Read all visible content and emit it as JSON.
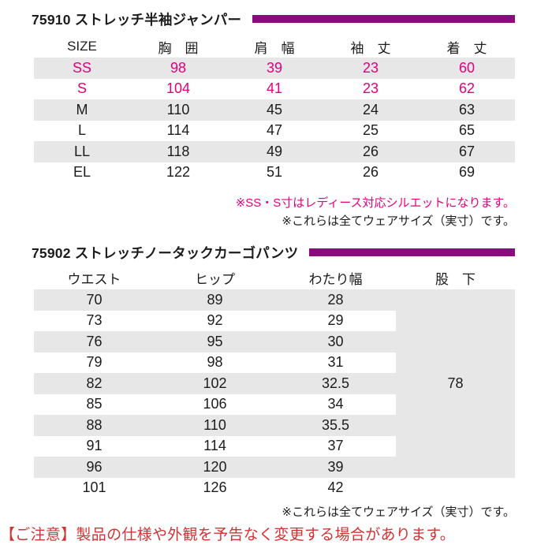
{
  "colors": {
    "accent_bar": "#8a0b7c",
    "pink": "#e4007f",
    "row_stripe": "#e7e7e7",
    "notice_red": "#d03333",
    "text": "#1c1c1c"
  },
  "section1": {
    "title": "75910 ストレッチ半袖ジャンパー",
    "headers": [
      "SIZE",
      "胸　囲",
      "肩　幅",
      "袖　丈",
      "着　丈"
    ],
    "rows": [
      {
        "cells": [
          "SS",
          "98",
          "39",
          "23",
          "60"
        ],
        "pink": true
      },
      {
        "cells": [
          "S",
          "104",
          "41",
          "23",
          "62"
        ],
        "pink": true
      },
      {
        "cells": [
          "M",
          "110",
          "45",
          "24",
          "63"
        ],
        "pink": false
      },
      {
        "cells": [
          "L",
          "114",
          "47",
          "25",
          "65"
        ],
        "pink": false
      },
      {
        "cells": [
          "LL",
          "118",
          "49",
          "26",
          "67"
        ],
        "pink": false
      },
      {
        "cells": [
          "EL",
          "122",
          "51",
          "26",
          "69"
        ],
        "pink": false
      }
    ],
    "note_pink": "※SS・S寸はレディース対応シルエットになります。",
    "note_black": "※これらは全てウェアサイズ（実寸）です。"
  },
  "section2": {
    "title": "75902 ストレッチノータックカーゴパンツ",
    "headers": [
      "ウエスト",
      "ヒップ",
      "わたり幅",
      "股　下"
    ],
    "rows": [
      {
        "cells": [
          "70",
          "89",
          "28"
        ],
        "pink": false
      },
      {
        "cells": [
          "73",
          "92",
          "29"
        ],
        "pink": false
      },
      {
        "cells": [
          "76",
          "95",
          "30"
        ],
        "pink": false
      },
      {
        "cells": [
          "79",
          "98",
          "31"
        ],
        "pink": false
      },
      {
        "cells": [
          "82",
          "102",
          "32.5"
        ],
        "pink": false
      },
      {
        "cells": [
          "85",
          "106",
          "34"
        ],
        "pink": false
      },
      {
        "cells": [
          "88",
          "110",
          "35.5"
        ],
        "pink": false
      },
      {
        "cells": [
          "91",
          "114",
          "37"
        ],
        "pink": false
      },
      {
        "cells": [
          "96",
          "120",
          "39"
        ],
        "pink": false
      },
      {
        "cells": [
          "101",
          "126",
          "42"
        ],
        "pink": false
      }
    ],
    "inseam_value": "78",
    "note_black": "※これらは全てウェアサイズ（実寸）です。"
  },
  "footer": {
    "notice": "【ご注意】製品の仕様や外観を予告なく変更する場合があります。"
  }
}
